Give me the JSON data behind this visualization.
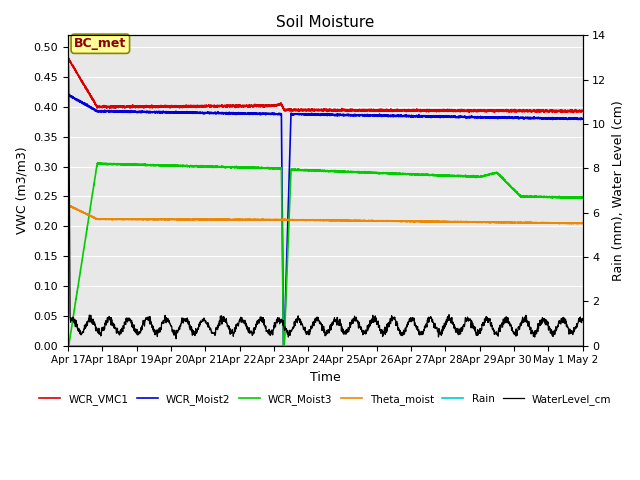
{
  "title": "Soil Moisture",
  "ylabel_left": "VWC (m3/m3)",
  "ylabel_right": "Rain (mm), Water Level (cm)",
  "xlabel": "Time",
  "ylim_left": [
    0.0,
    0.52
  ],
  "ylim_right": [
    0,
    14
  ],
  "background_color": "#e8e8e8",
  "xtick_labels": [
    "Apr 17",
    "Apr 18",
    "Apr 19",
    "Apr 20",
    "Apr 21",
    "Apr 22",
    "Apr 23",
    "Apr 24",
    "Apr 25",
    "Apr 26",
    "Apr 27",
    "Apr 28",
    "Apr 29",
    "Apr 30",
    "May 1",
    "May 2"
  ],
  "xtick_positions": [
    0,
    1,
    2,
    3,
    4,
    5,
    6,
    7,
    8,
    9,
    10,
    11,
    12,
    13,
    14,
    15
  ],
  "ytick_left": [
    0.0,
    0.05,
    0.1,
    0.15,
    0.2,
    0.25,
    0.3,
    0.35,
    0.4,
    0.45,
    0.5
  ],
  "ytick_right": [
    0,
    2,
    4,
    6,
    8,
    10,
    12,
    14
  ],
  "annotation_text": "BC_met",
  "colors": {
    "WCR_VMC1": "#dd0000",
    "WCR_Moist2": "#0000dd",
    "WCR_Moist3": "#00cc00",
    "Theta_moist": "#ee8800",
    "Rain": "#00cccc",
    "WaterLevel_cm": "#000000"
  }
}
